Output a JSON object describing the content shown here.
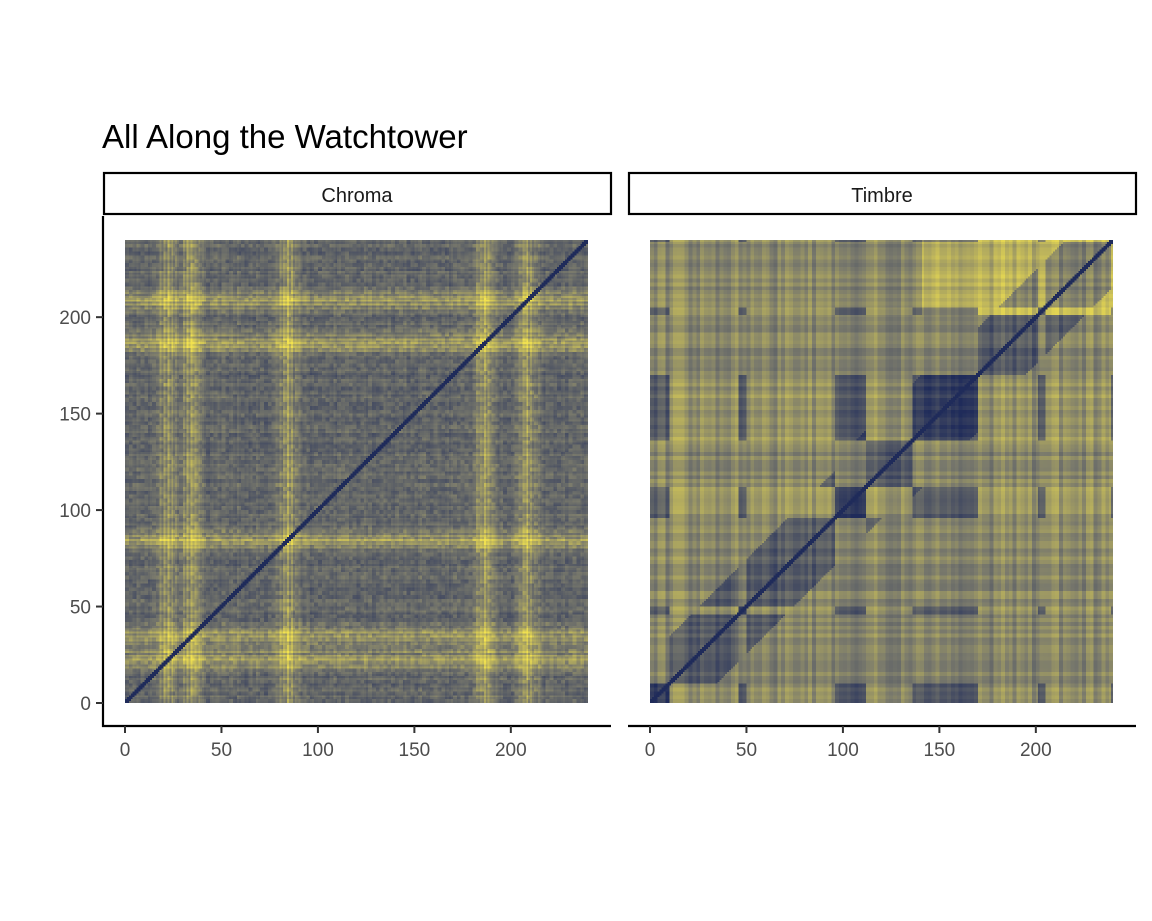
{
  "chart_data": {
    "type": "heatmap",
    "title": "All Along the Watchtower",
    "xlabel": "",
    "ylabel": "",
    "xlim": [
      0,
      240
    ],
    "ylim": [
      0,
      240
    ],
    "x_ticks": [
      0,
      50,
      100,
      150,
      200
    ],
    "y_ticks": [
      0,
      50,
      100,
      150,
      200
    ],
    "x_tick_labels": [
      "0",
      "50",
      "100",
      "150",
      "200"
    ],
    "y_tick_labels": [
      "0",
      "50",
      "100",
      "150",
      "200"
    ],
    "grid": false,
    "legend": "none",
    "colors": {
      "low": "#1f2b5a",
      "mid": "#7a7a6c",
      "high": "#f2e24f"
    },
    "panels": [
      {
        "name": "Chroma",
        "description_of_values": "self-similarity distance matrix, dark diagonal",
        "matrix_size": 240,
        "bright_bands_approx": [
          22,
          34,
          84,
          186,
          208
        ]
      },
      {
        "name": "Timbre",
        "description_of_values": "self-similarity distance matrix, dark diagonal",
        "matrix_size": 240,
        "bright_blocks_approx": [
          [
            10,
            45
          ],
          [
            50,
            95
          ],
          [
            112,
            135
          ],
          [
            170,
            200
          ],
          [
            205,
            238
          ]
        ]
      }
    ]
  }
}
